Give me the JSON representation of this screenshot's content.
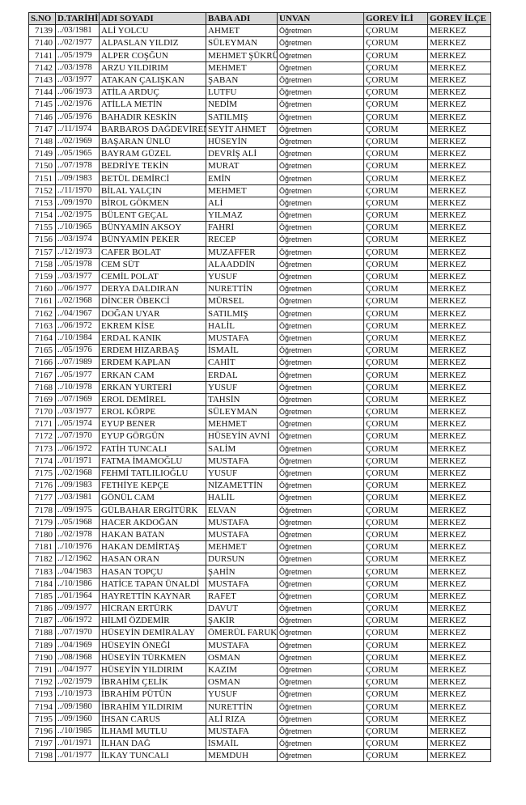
{
  "table": {
    "headers": [
      "S.NO",
      "D.TARİHİ",
      "ADI SOYADI",
      "BABA ADI",
      "UNVAN",
      "GOREV İLİ",
      "GOREV İLÇE"
    ],
    "rows": [
      [
        "7139",
        "../03/1981",
        "ALİ YOLCU",
        "AHMET",
        "Öğretmen",
        "ÇORUM",
        "MERKEZ"
      ],
      [
        "7140",
        "../02/1977",
        "ALPASLAN YILDIZ",
        "SÜLEYMAN",
        "Öğretmen",
        "ÇORUM",
        "MERKEZ"
      ],
      [
        "7141",
        "../05/1979",
        "ALPER COŞĞUN",
        "MEHMET ŞÜKRÜ",
        "Öğretmen",
        "ÇORUM",
        "MERKEZ"
      ],
      [
        "7142",
        "../03/1978",
        "ARZU YILDIRIM",
        "MEHMET",
        "Öğretmen",
        "ÇORUM",
        "MERKEZ"
      ],
      [
        "7143",
        "../03/1977",
        "ATAKAN ÇALIŞKAN",
        "ŞABAN",
        "Öğretmen",
        "ÇORUM",
        "MERKEZ"
      ],
      [
        "7144",
        "../06/1973",
        "ATİLA ARDUÇ",
        "LUTFU",
        "Öğretmen",
        "ÇORUM",
        "MERKEZ"
      ],
      [
        "7145",
        "../02/1976",
        "ATİLLA METİN",
        "NEDİM",
        "Öğretmen",
        "ÇORUM",
        "MERKEZ"
      ],
      [
        "7146",
        "../05/1976",
        "BAHADIR KESKİN",
        "SATILMIŞ",
        "Öğretmen",
        "ÇORUM",
        "MERKEZ"
      ],
      [
        "7147",
        "../11/1974",
        "BARBAROS DAĞDEVİREN",
        "SEYİT AHMET",
        "Öğretmen",
        "ÇORUM",
        "MERKEZ"
      ],
      [
        "7148",
        "../02/1969",
        "BAŞARAN ÜNLÜ",
        "HÜSEYİN",
        "Öğretmen",
        "ÇORUM",
        "MERKEZ"
      ],
      [
        "7149",
        "../05/1965",
        "BAYRAM GÜZEL",
        "DEVRİŞ ALİ",
        "Öğretmen",
        "ÇORUM",
        "MERKEZ"
      ],
      [
        "7150",
        "../07/1978",
        "BEDRİYE TEKİN",
        "MURAT",
        "Öğretmen",
        "ÇORUM",
        "MERKEZ"
      ],
      [
        "7151",
        "../09/1983",
        "BETÜL DEMİRCİ",
        "EMİN",
        "Öğretmen",
        "ÇORUM",
        "MERKEZ"
      ],
      [
        "7152",
        "../11/1970",
        "BİLAL YALÇIN",
        "MEHMET",
        "Öğretmen",
        "ÇORUM",
        "MERKEZ"
      ],
      [
        "7153",
        "../09/1970",
        "BİROL GÖKMEN",
        "ALİ",
        "Öğretmen",
        "ÇORUM",
        "MERKEZ"
      ],
      [
        "7154",
        "../02/1975",
        "BÜLENT GEÇAL",
        "YILMAZ",
        "Öğretmen",
        "ÇORUM",
        "MERKEZ"
      ],
      [
        "7155",
        "../10/1965",
        "BÜNYAMİN AKSOY",
        "FAHRİ",
        "Öğretmen",
        "ÇORUM",
        "MERKEZ"
      ],
      [
        "7156",
        "../03/1974",
        "BÜNYAMİN PEKER",
        "RECEP",
        "Öğretmen",
        "ÇORUM",
        "MERKEZ"
      ],
      [
        "7157",
        "../12/1973",
        "CAFER BOLAT",
        "MUZAFFER",
        "Öğretmen",
        "ÇORUM",
        "MERKEZ"
      ],
      [
        "7158",
        "../05/1978",
        "CEM SÜT",
        "ALAADDİN",
        "Öğretmen",
        "ÇORUM",
        "MERKEZ"
      ],
      [
        "7159",
        "../03/1977",
        "CEMİL POLAT",
        "YUSUF",
        "Öğretmen",
        "ÇORUM",
        "MERKEZ"
      ],
      [
        "7160",
        "../06/1977",
        "DERYA DALDIRAN",
        "NURETTİN",
        "Öğretmen",
        "ÇORUM",
        "MERKEZ"
      ],
      [
        "7161",
        "../02/1968",
        "DİNCER ÖBEKCİ",
        "MÜRSEL",
        "Öğretmen",
        "ÇORUM",
        "MERKEZ"
      ],
      [
        "7162",
        "../04/1967",
        "DOĞAN UYAR",
        "SATILMIŞ",
        "Öğretmen",
        "ÇORUM",
        "MERKEZ"
      ],
      [
        "7163",
        "../06/1972",
        "EKREM KİSE",
        "HALİL",
        "Öğretmen",
        "ÇORUM",
        "MERKEZ"
      ],
      [
        "7164",
        "../10/1984",
        "ERDAL KANIK",
        "MUSTAFA",
        "Öğretmen",
        "ÇORUM",
        "MERKEZ"
      ],
      [
        "7165",
        "../05/1976",
        "ERDEM HIZARBAŞ",
        "İSMAİL",
        "Öğretmen",
        "ÇORUM",
        "MERKEZ"
      ],
      [
        "7166",
        "../07/1989",
        "ERDEM KAPLAN",
        "CAHİT",
        "Öğretmen",
        "ÇORUM",
        "MERKEZ"
      ],
      [
        "7167",
        "../05/1977",
        "ERKAN CAM",
        "ERDAL",
        "Öğretmen",
        "ÇORUM",
        "MERKEZ"
      ],
      [
        "7168",
        "../10/1978",
        "ERKAN YURTERİ",
        "YUSUF",
        "Öğretmen",
        "ÇORUM",
        "MERKEZ"
      ],
      [
        "7169",
        "../07/1969",
        "EROL DEMİREL",
        "TAHSİN",
        "Öğretmen",
        "ÇORUM",
        "MERKEZ"
      ],
      [
        "7170",
        "../03/1977",
        "EROL KÖRPE",
        "SÜLEYMAN",
        "Öğretmen",
        "ÇORUM",
        "MERKEZ"
      ],
      [
        "7171",
        "../05/1974",
        "EYUP BENER",
        "MEHMET",
        "Öğretmen",
        "ÇORUM",
        "MERKEZ"
      ],
      [
        "7172",
        "../07/1970",
        "EYUP GÖRGÜN",
        "HÜSEYİN AVNİ",
        "Öğretmen",
        "ÇORUM",
        "MERKEZ"
      ],
      [
        "7173",
        "../06/1972",
        "FATİH TUNCALI",
        "SALİM",
        "Öğretmen",
        "ÇORUM",
        "MERKEZ"
      ],
      [
        "7174",
        "../01/1971",
        "FATMA İMAMOĞLU",
        "MUSTAFA",
        "Öğretmen",
        "ÇORUM",
        "MERKEZ"
      ],
      [
        "7175",
        "../02/1968",
        "FEHMİ TATLILIOĞLU",
        "YUSUF",
        "Öğretmen",
        "ÇORUM",
        "MERKEZ"
      ],
      [
        "7176",
        "../09/1983",
        "FETHİYE KEPÇE",
        "NİZAMETTİN",
        "Öğretmen",
        "ÇORUM",
        "MERKEZ"
      ],
      [
        "7177",
        "../03/1981",
        "GÖNÜL CAM",
        "HALİL",
        "Öğretmen",
        "ÇORUM",
        "MERKEZ"
      ],
      [
        "7178",
        "../09/1975",
        "GÜLBAHAR ERGİTÜRK",
        "ELVAN",
        "Öğretmen",
        "ÇORUM",
        "MERKEZ"
      ],
      [
        "7179",
        "../05/1968",
        "HACER AKDOĞAN",
        "MUSTAFA",
        "Öğretmen",
        "ÇORUM",
        "MERKEZ"
      ],
      [
        "7180",
        "../02/1978",
        "HAKAN BATAN",
        "MUSTAFA",
        "Öğretmen",
        "ÇORUM",
        "MERKEZ"
      ],
      [
        "7181",
        "../10/1976",
        "HAKAN DEMİRTAŞ",
        "MEHMET",
        "Öğretmen",
        "ÇORUM",
        "MERKEZ"
      ],
      [
        "7182",
        "../12/1962",
        "HASAN ORAN",
        "DURSUN",
        "Öğretmen",
        "ÇORUM",
        "MERKEZ"
      ],
      [
        "7183",
        "../04/1983",
        "HASAN TOPÇU",
        "ŞAHİN",
        "Öğretmen",
        "ÇORUM",
        "MERKEZ"
      ],
      [
        "7184",
        "../10/1986",
        "HATİCE TAPAN ÜNALDİ",
        "MUSTAFA",
        "Öğretmen",
        "ÇORUM",
        "MERKEZ"
      ],
      [
        "7185",
        "../01/1964",
        "HAYRETTİN KAYNAR",
        "RAFET",
        "Öğretmen",
        "ÇORUM",
        "MERKEZ"
      ],
      [
        "7186",
        "../09/1977",
        "HİCRAN ERTÜRK",
        "DAVUT",
        "Öğretmen",
        "ÇORUM",
        "MERKEZ"
      ],
      [
        "7187",
        "../06/1972",
        "HİLMİ ÖZDEMİR",
        "ŞAKİR",
        "Öğretmen",
        "ÇORUM",
        "MERKEZ"
      ],
      [
        "7188",
        "../07/1970",
        "HÜSEYİN DEMİRALAY",
        "ÖMERÜL FARUK",
        "Öğretmen",
        "ÇORUM",
        "MERKEZ"
      ],
      [
        "7189",
        "../04/1969",
        "HÜSEYİN ÖNEĞİ",
        "MUSTAFA",
        "Öğretmen",
        "ÇORUM",
        "MERKEZ"
      ],
      [
        "7190",
        "../08/1968",
        "HÜSEYİN TÜRKMEN",
        "OSMAN",
        "Öğretmen",
        "ÇORUM",
        "MERKEZ"
      ],
      [
        "7191",
        "../04/1977",
        "HÜSEYİN YILDIRIM",
        "KAZIM",
        "Öğretmen",
        "ÇORUM",
        "MERKEZ"
      ],
      [
        "7192",
        "../02/1979",
        "İBRAHİM ÇELİK",
        "OSMAN",
        "Öğretmen",
        "ÇORUM",
        "MERKEZ"
      ],
      [
        "7193",
        "../10/1973",
        "İBRAHİM PÜTÜN",
        "YUSUF",
        "Öğretmen",
        "ÇORUM",
        "MERKEZ"
      ],
      [
        "7194",
        "../09/1980",
        "İBRAHİM YILDIRIM",
        "NURETTİN",
        "Öğretmen",
        "ÇORUM",
        "MERKEZ"
      ],
      [
        "7195",
        "../09/1960",
        "İHSAN CARUS",
        "ALİ RIZA",
        "Öğretmen",
        "ÇORUM",
        "MERKEZ"
      ],
      [
        "7196",
        "../10/1985",
        "İLHAMİ MUTLU",
        "MUSTAFA",
        "Öğretmen",
        "ÇORUM",
        "MERKEZ"
      ],
      [
        "7197",
        "../01/1971",
        "İLHAN DAĞ",
        "İSMAİL",
        "Öğretmen",
        "ÇORUM",
        "MERKEZ"
      ],
      [
        "7198",
        "../01/1977",
        "İLKAY TUNCALI",
        "MEMDUH",
        "Öğretmen",
        "ÇORUM",
        "MERKEZ"
      ]
    ]
  }
}
